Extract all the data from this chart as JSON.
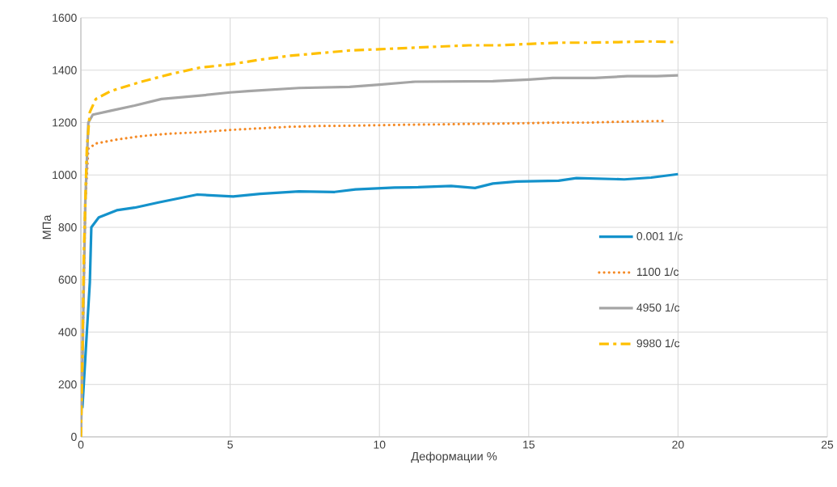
{
  "chart_data": {
    "type": "line",
    "xlabel": "Деформации %",
    "ylabel": "МПа",
    "xlim": [
      0,
      25
    ],
    "xticks": [
      0,
      5,
      10,
      15,
      20,
      25
    ],
    "ylim": [
      0,
      1600
    ],
    "yticks": [
      0,
      200,
      400,
      600,
      800,
      1000,
      1200,
      1400,
      1600
    ],
    "grid": true,
    "legend": "right",
    "marker": "none",
    "series": [
      {
        "name": "0.001 1/с",
        "color": "#1492cb",
        "line_style": "solid",
        "x": [
          0.05,
          0.2,
          0.3,
          0.35,
          0.6,
          1.2,
          1.8,
          2.6,
          3.9,
          5.1,
          6.0,
          7.3,
          8.5,
          9.2,
          10.5,
          11.3,
          12.4,
          13.2,
          13.8,
          14.6,
          16.0,
          16.6,
          18.2,
          19.1,
          20.0
        ],
        "values": [
          110,
          400,
          590,
          800,
          838,
          865,
          875,
          895,
          925,
          918,
          928,
          937,
          935,
          945,
          952,
          953,
          958,
          950,
          967,
          975,
          978,
          988,
          983,
          990,
          1003
        ]
      },
      {
        "name": "1100 1/с",
        "color": "#f58a25",
        "line_style": "dotted",
        "x": [
          0,
          0.05,
          0.1,
          0.15,
          0.25,
          0.5,
          1.2,
          2,
          3,
          4,
          5,
          6,
          7,
          8,
          9,
          10,
          11,
          12,
          13,
          14,
          15,
          16,
          17,
          18,
          19,
          19.5
        ],
        "values": [
          0,
          300,
          600,
          900,
          1100,
          1120,
          1135,
          1148,
          1158,
          1163,
          1172,
          1178,
          1184,
          1187,
          1188,
          1190,
          1192,
          1193,
          1195,
          1196,
          1198,
          1200,
          1200,
          1203,
          1205,
          1206
        ]
      },
      {
        "name": "4950 1/с",
        "color": "#a5a5a5",
        "line_style": "solid",
        "x": [
          0,
          0.05,
          0.1,
          0.15,
          0.25,
          0.4,
          1,
          1.8,
          2.7,
          4,
          5,
          5.6,
          7.3,
          9,
          10,
          11.2,
          13.8,
          15,
          15.8,
          17.2,
          18.3,
          19.3,
          20
        ],
        "values": [
          0,
          250,
          600,
          900,
          1200,
          1230,
          1245,
          1265,
          1290,
          1303,
          1315,
          1320,
          1332,
          1336,
          1345,
          1356,
          1358,
          1364,
          1370,
          1370,
          1377,
          1377,
          1380
        ]
      },
      {
        "name": "9980 1/с",
        "color": "#ffc000",
        "line_style": "dashdot",
        "x": [
          0,
          0.05,
          0.1,
          0.2,
          0.3,
          0.5,
          1,
          2,
          3,
          4,
          5,
          6,
          7,
          8,
          9,
          10,
          11,
          12,
          13,
          14,
          15,
          16,
          17,
          18,
          19,
          20
        ],
        "values": [
          0,
          300,
          700,
          1100,
          1240,
          1290,
          1320,
          1355,
          1385,
          1410,
          1422,
          1440,
          1455,
          1465,
          1475,
          1480,
          1485,
          1490,
          1495,
          1495,
          1500,
          1505,
          1505,
          1507,
          1510,
          1507
        ]
      }
    ]
  }
}
